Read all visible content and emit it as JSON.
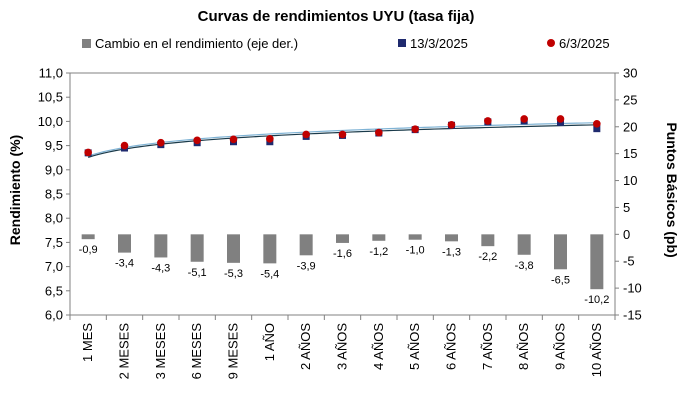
{
  "chart_data": {
    "type": "bar+scatter",
    "title": "Curvas de rendimientos UYU (tasa fija)",
    "ylabel_left": "Rendimiento (%)",
    "ylabel_right": "Puntos Básicos (pb)",
    "ylim_left": [
      6.0,
      11.0
    ],
    "ylim_right": [
      -15,
      30
    ],
    "yticks_left": [
      "6,0",
      "6,5",
      "7,0",
      "7,5",
      "8,0",
      "8,5",
      "9,0",
      "9,5",
      "10,0",
      "10,5",
      "11,0"
    ],
    "yticks_right": [
      "-15",
      "-10",
      "-5",
      "0",
      "5",
      "10",
      "15",
      "20",
      "25",
      "30"
    ],
    "categories": [
      "1 MES",
      "2 MESES",
      "3 MESES",
      "6 MESES",
      "9 MESES",
      "1 AÑO",
      "2 AÑOS",
      "3 AÑOS",
      "4 AÑOS",
      "5 AÑOS",
      "6 AÑOS",
      "7 AÑOS",
      "8 AÑOS",
      "9 AÑOS",
      "10 AÑOS"
    ],
    "series": [
      {
        "name": "Cambio en el rendimiento (eje der.)",
        "kind": "bar",
        "axis": "right",
        "color": "#808080",
        "values": [
          -0.9,
          -3.4,
          -4.3,
          -5.1,
          -5.3,
          -5.4,
          -3.9,
          -1.6,
          -1.2,
          -1.0,
          -1.3,
          -2.2,
          -3.8,
          -6.5,
          -10.2
        ],
        "labels": [
          "-0,9",
          "-3,4",
          "-4,3",
          "-5,1",
          "-5,3",
          "-5,4",
          "-3,9",
          "-1,6",
          "-1,2",
          "-1,0",
          "-1,3",
          "-2,2",
          "-3,8",
          "-6,5",
          "-10,2"
        ]
      },
      {
        "name": "13/3/2025",
        "kind": "scatter",
        "axis": "left",
        "color": "#1f2a6e",
        "marker": "square",
        "values": [
          9.35,
          9.45,
          9.52,
          9.56,
          9.58,
          9.58,
          9.69,
          9.71,
          9.76,
          9.83,
          9.92,
          9.99,
          10.01,
          9.98,
          9.85
        ]
      },
      {
        "name": "6/3/2025",
        "kind": "scatter",
        "axis": "left",
        "color": "#c00000",
        "marker": "circle",
        "values": [
          9.36,
          9.5,
          9.56,
          9.61,
          9.63,
          9.64,
          9.73,
          9.73,
          9.77,
          9.84,
          9.93,
          10.01,
          10.05,
          10.05,
          9.95
        ]
      }
    ],
    "trend_colors": [
      "#7fb3d5",
      "#1a3a4a"
    ],
    "grid": false,
    "legend_position": "top"
  }
}
